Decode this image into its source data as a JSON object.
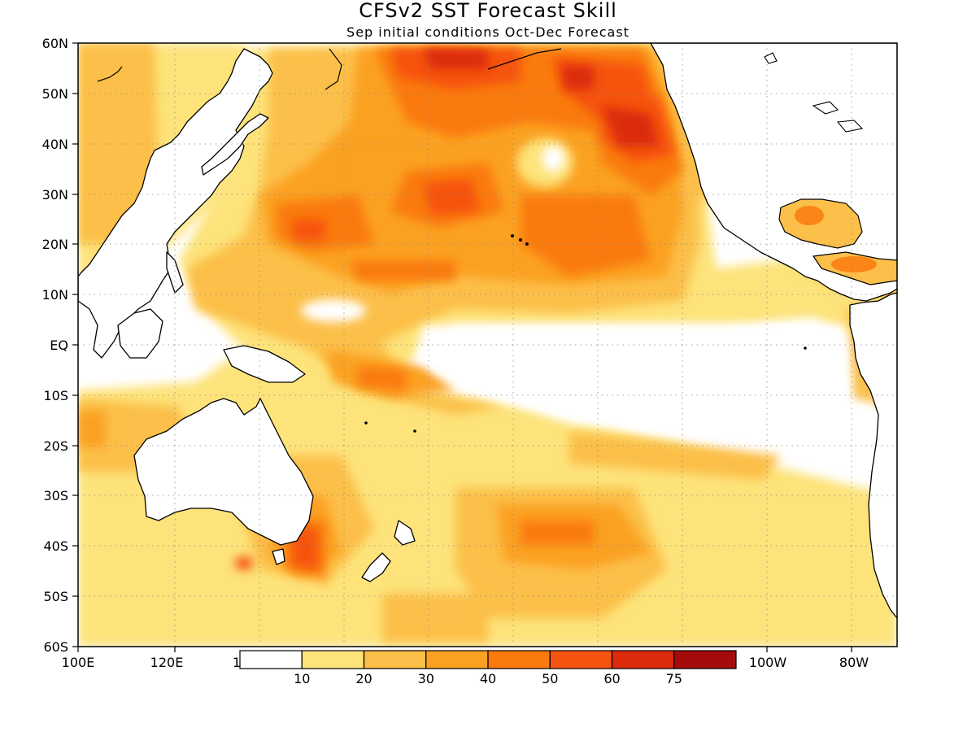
{
  "title": "CFSv2 SST Forecast Skill",
  "subtitle": "Sep initial conditions  Oct-Dec Forecast",
  "lat_labels": [
    "60N",
    "50N",
    "40N",
    "30N",
    "20N",
    "10N",
    "EQ",
    "10S",
    "20S",
    "30S",
    "40S",
    "50S",
    "60S"
  ],
  "lon_labels": [
    "100E",
    "120E",
    "1",
    "100W",
    "80W"
  ],
  "colorbar": {
    "labels": [
      "10",
      "20",
      "30",
      "40",
      "50",
      "60",
      "75"
    ],
    "colors": [
      "#ffffff",
      "#fde37a",
      "#fcbf4a",
      "#fba122",
      "#fa7a0e",
      "#f65311",
      "#db2a0c",
      "#a40c0c"
    ]
  },
  "colors": {
    "frame": "#000000",
    "land": "#ffffff"
  }
}
